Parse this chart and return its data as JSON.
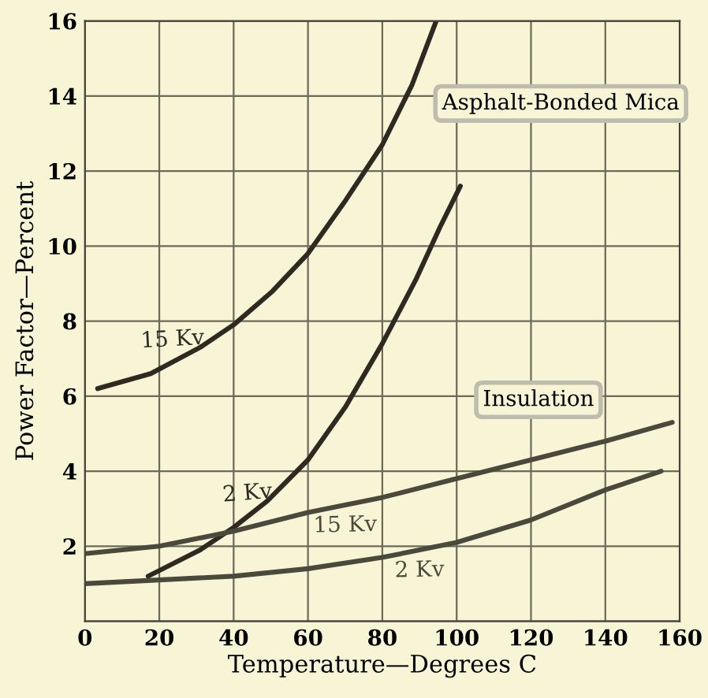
{
  "chart_data": {
    "type": "line",
    "xlabel": "Temperature—Degrees C",
    "ylabel": "Power Factor—Percent",
    "xlim": [
      0,
      160
    ],
    "xticks": [
      0,
      20,
      40,
      60,
      80,
      100,
      120,
      140,
      160
    ],
    "ylim": [
      0,
      16
    ],
    "yticks": [
      {
        "value": 0,
        "label": null
      },
      2,
      4,
      6,
      8,
      10,
      12,
      14,
      16
    ],
    "grid": true,
    "legend": false,
    "marker": "none",
    "line_style": "solid",
    "annotations": [
      "Asphalt-Bonded Mica",
      "Insulation"
    ],
    "series": [
      {
        "name": "15 Kv",
        "color": "#2e2a22",
        "x": [
          3.4,
          17.7,
          31,
          40,
          50.5,
          60,
          70,
          80,
          88,
          94.5
        ],
        "values": [
          6.2,
          6.6,
          7.3,
          7.9,
          8.8,
          9.8,
          11.2,
          12.7,
          14.3,
          16
        ]
      },
      {
        "name": "2 Kv",
        "color": "#2e2a22",
        "x": [
          17,
          31,
          40,
          49,
          60,
          70,
          80,
          89,
          95.5,
          101
        ],
        "values": [
          1.2,
          1.9,
          2.5,
          3.2,
          4.3,
          5.7,
          7.4,
          9.1,
          10.5,
          11.6
        ]
      },
      {
        "name": "15 Kv",
        "color": "#4a4a3c",
        "x": [
          0,
          20,
          40,
          60,
          80,
          100,
          120,
          140,
          158
        ],
        "values": [
          1.8,
          2.0,
          2.4,
          2.9,
          3.3,
          3.8,
          4.3,
          4.8,
          5.3
        ]
      },
      {
        "name": "2 Kv",
        "color": "#4a4a3c",
        "x": [
          0,
          20,
          40,
          60,
          80,
          100,
          120,
          140,
          155
        ],
        "values": [
          1.0,
          1.1,
          1.2,
          1.4,
          1.7,
          2.1,
          2.7,
          3.5,
          4.0
        ]
      }
    ]
  }
}
